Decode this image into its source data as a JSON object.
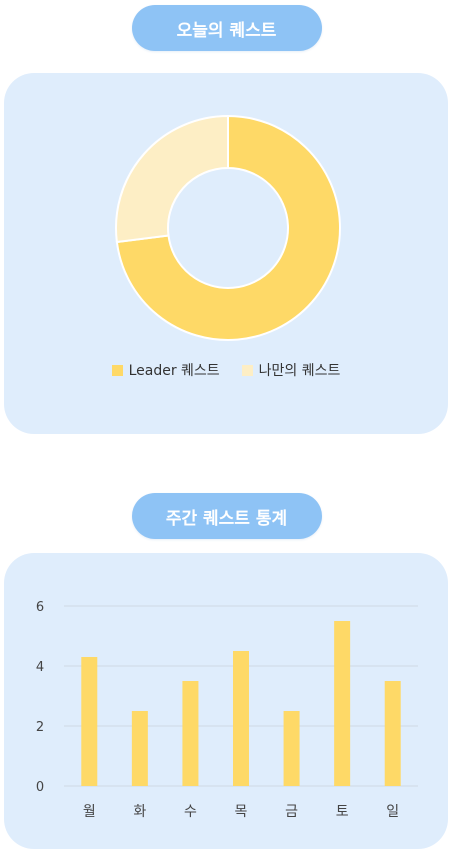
{
  "today": {
    "title": "오늘의 퀘스트"
  },
  "weekly": {
    "title": "주간 퀘스트 통계"
  },
  "colors": {
    "pill_bg": "#8ec3f5",
    "card_bg": "#dfedfc",
    "leader": "#fed967",
    "mine": "#fdeec5",
    "bar": "#fed967",
    "grid": "#cfd9e4",
    "tick": "#444444"
  },
  "chart_data": [
    {
      "type": "pie",
      "style": "donut",
      "labels": [
        "Leader 퀘스트",
        "나만의 퀘스트"
      ],
      "values": [
        73,
        27
      ],
      "legend": "bottom"
    },
    {
      "type": "bar",
      "categories": [
        "월",
        "화",
        "수",
        "목",
        "금",
        "토",
        "일"
      ],
      "values": [
        4.3,
        2.5,
        3.5,
        4.5,
        2.5,
        5.5,
        3.5
      ],
      "ylim": [
        0,
        6
      ],
      "yticks": [
        0,
        2,
        4,
        6
      ],
      "grid": true,
      "legend": "none"
    }
  ]
}
